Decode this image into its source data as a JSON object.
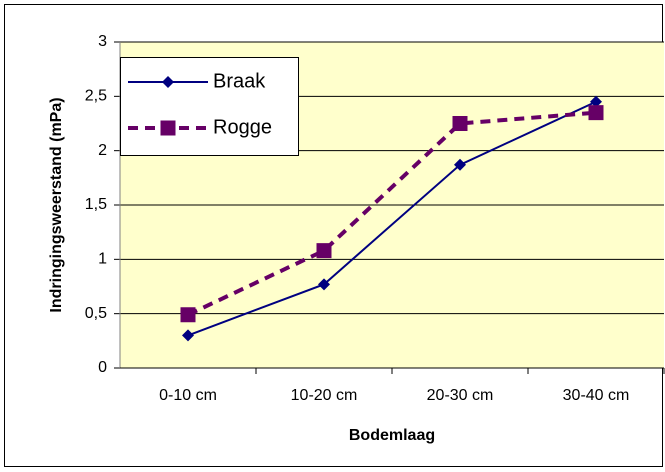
{
  "chart_data": {
    "type": "line",
    "x_label": "Bodemlaag",
    "y_label": "Indringingsweerstand (mPa)",
    "categories": [
      "0-10 cm",
      "10-20 cm",
      "20-30 cm",
      "30-40 cm"
    ],
    "series": [
      {
        "name": "Braak",
        "color": "#000080",
        "values": [
          0.3,
          0.77,
          1.87,
          2.45
        ]
      },
      {
        "name": "Rogge",
        "color": "#660066",
        "values": [
          0.49,
          1.08,
          2.25,
          2.35
        ]
      }
    ],
    "ylim": [
      0,
      3
    ],
    "yticks": [
      0,
      {
        "value": 0.5,
        "label": "0,5"
      },
      1,
      {
        "value": 1.5,
        "label": "1,5"
      },
      2,
      {
        "value": 2.5,
        "label": "2,5"
      },
      3
    ],
    "grid": true,
    "legend": "upper left"
  }
}
